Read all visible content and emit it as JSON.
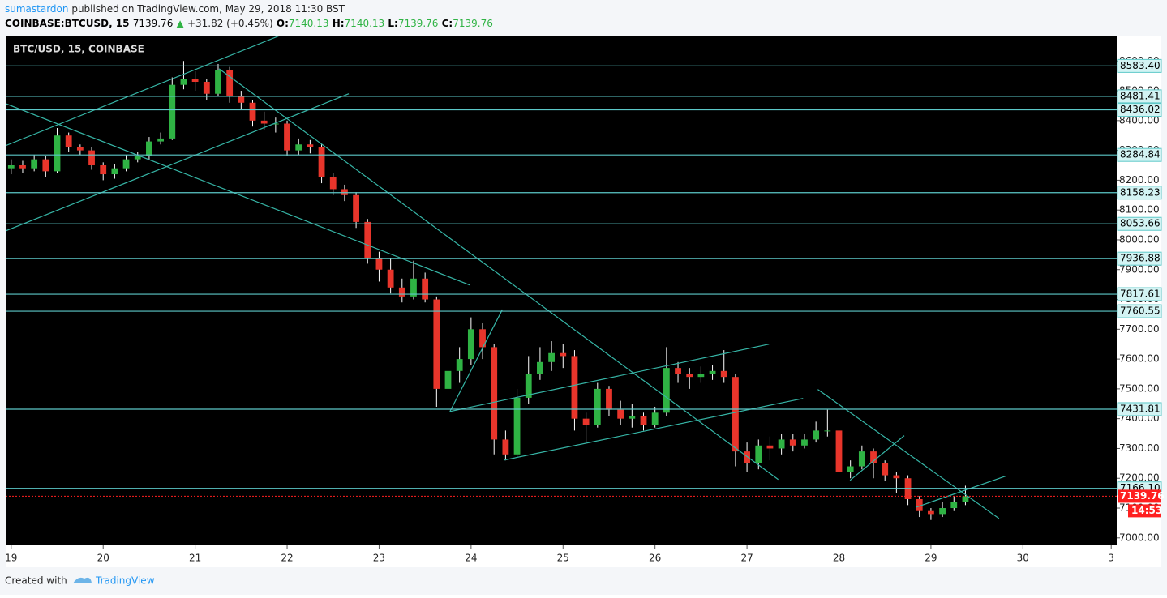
{
  "header": {
    "author": "sumastardon",
    "published": "published on TradingView.com, May 29, 2018 11:30 BST"
  },
  "quote": {
    "symbol": "COINBASE:BTCUSD, 15",
    "last": 7139.76,
    "arrow": "▲",
    "change": "+31.82 (+0.45%)",
    "open_label": "O:",
    "open": 7140.13,
    "high_label": "H:",
    "high": 7140.13,
    "low_label": "L:",
    "low": 7139.76,
    "close_label": "C:",
    "close": 7139.76
  },
  "chart_data": {
    "type": "candlestick",
    "title": "BTC/USD, 15, COINBASE",
    "up_color": "#2fb344",
    "down_color": "#e8352b",
    "wick_color": "#ffffff",
    "level_color": "#5cc8c8",
    "trendline_color": "#36b5a6",
    "last_price_color": "#ff1f1f",
    "xlim": [
      -0.06,
      12.02
    ],
    "ylim": [
      6975,
      8685
    ],
    "xticks": [
      {
        "value": 0,
        "label": "19"
      },
      {
        "value": 1,
        "label": "20"
      },
      {
        "value": 2,
        "label": "21"
      },
      {
        "value": 3,
        "label": "22"
      },
      {
        "value": 4,
        "label": "23"
      },
      {
        "value": 5,
        "label": "24"
      },
      {
        "value": 6,
        "label": "25"
      },
      {
        "value": 7,
        "label": "26"
      },
      {
        "value": 8,
        "label": "27"
      },
      {
        "value": 9,
        "label": "28"
      },
      {
        "value": 10,
        "label": "29"
      },
      {
        "value": 11,
        "label": "30"
      },
      {
        "value": 11.96,
        "label": "3"
      }
    ],
    "yticks": [
      {
        "value": 7000,
        "label": "7000.00"
      },
      {
        "value": 7100,
        "label": "7100.00"
      },
      {
        "value": 7200,
        "label": "7200.00"
      },
      {
        "value": 7300,
        "label": "7300.00"
      },
      {
        "value": 7400,
        "label": "7400.00"
      },
      {
        "value": 7500,
        "label": "7500.00"
      },
      {
        "value": 7600,
        "label": "7600.00"
      },
      {
        "value": 7700,
        "label": "7700.00"
      },
      {
        "value": 7800,
        "label": "7800.00"
      },
      {
        "value": 7900,
        "label": "7900.00"
      },
      {
        "value": 8000,
        "label": "8000.00"
      },
      {
        "value": 8100,
        "label": "8100.00"
      },
      {
        "value": 8200,
        "label": "8200.00"
      },
      {
        "value": 8300,
        "label": "8300.00"
      },
      {
        "value": 8400,
        "label": "8400.00"
      },
      {
        "value": 8500,
        "label": "8500.00"
      },
      {
        "value": 8600,
        "label": "8600.00"
      }
    ],
    "levels": [
      {
        "value": 8583.4,
        "label": "8583.40"
      },
      {
        "value": 8481.41,
        "label": "8481.41"
      },
      {
        "value": 8436.02,
        "label": "8436.02"
      },
      {
        "value": 8284.84,
        "label": "8284.84"
      },
      {
        "value": 8158.23,
        "label": "8158.23"
      },
      {
        "value": 8053.66,
        "label": "8053.66"
      },
      {
        "value": 7936.88,
        "label": "7936.88"
      },
      {
        "value": 7817.61,
        "label": "7817.61"
      },
      {
        "value": 7760.55,
        "label": "7760.55"
      },
      {
        "value": 7431.81,
        "label": "7431.81"
      },
      {
        "value": 7166.1,
        "label": "7166.10"
      }
    ],
    "last_price": 7139.76,
    "countdown": "14:53",
    "trendlines": [
      {
        "x": [
          -0.06,
          2.92
        ],
        "y": [
          8316,
          8685
        ]
      },
      {
        "x": [
          -0.06,
          3.67
        ],
        "y": [
          8030,
          8490
        ]
      },
      {
        "x": [
          -0.06,
          4.99
        ],
        "y": [
          8457,
          7848
        ]
      },
      {
        "x": [
          2.26,
          8.34
        ],
        "y": [
          8574,
          7196
        ]
      },
      {
        "x": [
          4.77,
          5.34
        ],
        "y": [
          7424,
          7766
        ]
      },
      {
        "x": [
          4.77,
          8.24
        ],
        "y": [
          7424,
          7650
        ]
      },
      {
        "x": [
          5.36,
          8.61
        ],
        "y": [
          7261,
          7468
        ]
      },
      {
        "x": [
          8.77,
          10.74
        ],
        "y": [
          7498,
          7065
        ]
      },
      {
        "x": [
          9.12,
          9.71
        ],
        "y": [
          7193,
          7343
        ]
      },
      {
        "x": [
          9.84,
          10.81
        ],
        "y": [
          7103,
          7207
        ]
      }
    ],
    "x": [
      0,
      0.125,
      0.25,
      0.375,
      0.5,
      0.625,
      0.75,
      0.875,
      1,
      1.125,
      1.25,
      1.375,
      1.5,
      1.625,
      1.75,
      1.875,
      2,
      2.125,
      2.25,
      2.375,
      2.5,
      2.625,
      2.75,
      2.875,
      3,
      3.125,
      3.25,
      3.375,
      3.5,
      3.625,
      3.75,
      3.875,
      4,
      4.125,
      4.25,
      4.375,
      4.5,
      4.625,
      4.75,
      4.875,
      5,
      5.125,
      5.25,
      5.375,
      5.5,
      5.625,
      5.75,
      5.875,
      6,
      6.125,
      6.25,
      6.375,
      6.5,
      6.625,
      6.75,
      6.875,
      7,
      7.125,
      7.25,
      7.375,
      7.5,
      7.625,
      7.75,
      7.875,
      8,
      8.125,
      8.25,
      8.375,
      8.5,
      8.625,
      8.75,
      8.875,
      9,
      9.125,
      9.25,
      9.375,
      9.5,
      9.625,
      9.75,
      9.875,
      10,
      10.125,
      10.25,
      10.375
    ],
    "open": [
      8240,
      8250,
      8240,
      8270,
      8230,
      8350,
      8310,
      8300,
      8250,
      8220,
      8240,
      8270,
      8280,
      8330,
      8340,
      8520,
      8540,
      8530,
      8490,
      8570,
      8480,
      8460,
      8400,
      8390,
      8390,
      8300,
      8320,
      8310,
      8210,
      8170,
      8150,
      8060,
      7940,
      7900,
      7840,
      7810,
      7870,
      7800,
      7500,
      7560,
      7600,
      7700,
      7640,
      7330,
      7280,
      7470,
      7550,
      7590,
      7620,
      7610,
      7400,
      7380,
      7500,
      7430,
      7400,
      7410,
      7380,
      7420,
      7570,
      7550,
      7540,
      7550,
      7560,
      7540,
      7290,
      7250,
      7310,
      7300,
      7330,
      7310,
      7330,
      7360,
      7360,
      7220,
      7240,
      7290,
      7250,
      7210,
      7200,
      7130,
      7090,
      7080,
      7100,
      7120
    ],
    "high": [
      8270,
      8265,
      8285,
      8280,
      8375,
      8360,
      8320,
      8310,
      8260,
      8255,
      8285,
      8295,
      8345,
      8360,
      8545,
      8600,
      8565,
      8540,
      8590,
      8580,
      8500,
      8470,
      8430,
      8410,
      8400,
      8340,
      8335,
      8320,
      8225,
      8185,
      8160,
      8070,
      7960,
      7940,
      7870,
      7930,
      7890,
      7810,
      7650,
      7640,
      7740,
      7720,
      7650,
      7360,
      7500,
      7610,
      7640,
      7660,
      7650,
      7630,
      7420,
      7520,
      7510,
      7460,
      7450,
      7420,
      7440,
      7640,
      7590,
      7570,
      7575,
      7580,
      7630,
      7550,
      7320,
      7330,
      7340,
      7350,
      7350,
      7350,
      7390,
      7430,
      7370,
      7260,
      7310,
      7300,
      7260,
      7220,
      7210,
      7140,
      7100,
      7120,
      7140,
      7175
    ],
    "low": [
      8220,
      8225,
      8230,
      8210,
      8225,
      8295,
      8285,
      8235,
      8200,
      8205,
      8230,
      8260,
      8270,
      8320,
      8335,
      8505,
      8500,
      8470,
      8480,
      8460,
      8440,
      8380,
      8370,
      8360,
      8280,
      8285,
      8290,
      8190,
      8150,
      8130,
      8040,
      7920,
      7860,
      7820,
      7790,
      7800,
      7790,
      7440,
      7450,
      7520,
      7580,
      7600,
      7280,
      7260,
      7270,
      7450,
      7530,
      7560,
      7570,
      7360,
      7320,
      7370,
      7410,
      7380,
      7370,
      7360,
      7370,
      7410,
      7520,
      7500,
      7520,
      7530,
      7520,
      7240,
      7220,
      7230,
      7260,
      7280,
      7290,
      7300,
      7320,
      7340,
      7180,
      7200,
      7230,
      7200,
      7190,
      7150,
      7110,
      7070,
      7060,
      7070,
      7090,
      7110
    ],
    "close": [
      8250,
      8240,
      8270,
      8230,
      8350,
      8310,
      8300,
      8250,
      8220,
      8240,
      8270,
      8280,
      8330,
      8340,
      8520,
      8540,
      8530,
      8490,
      8570,
      8480,
      8460,
      8400,
      8390,
      8390,
      8300,
      8320,
      8310,
      8210,
      8170,
      8150,
      8060,
      7940,
      7900,
      7840,
      7810,
      7870,
      7800,
      7500,
      7560,
      7600,
      7700,
      7640,
      7330,
      7280,
      7470,
      7550,
      7590,
      7620,
      7610,
      7400,
      7380,
      7500,
      7430,
      7400,
      7410,
      7380,
      7420,
      7570,
      7550,
      7540,
      7550,
      7560,
      7540,
      7290,
      7250,
      7310,
      7300,
      7330,
      7310,
      7330,
      7360,
      7360,
      7220,
      7240,
      7290,
      7250,
      7210,
      7200,
      7130,
      7090,
      7080,
      7100,
      7120,
      7139.76
    ]
  },
  "footer": {
    "created": "Created with",
    "brand": "TradingView"
  }
}
